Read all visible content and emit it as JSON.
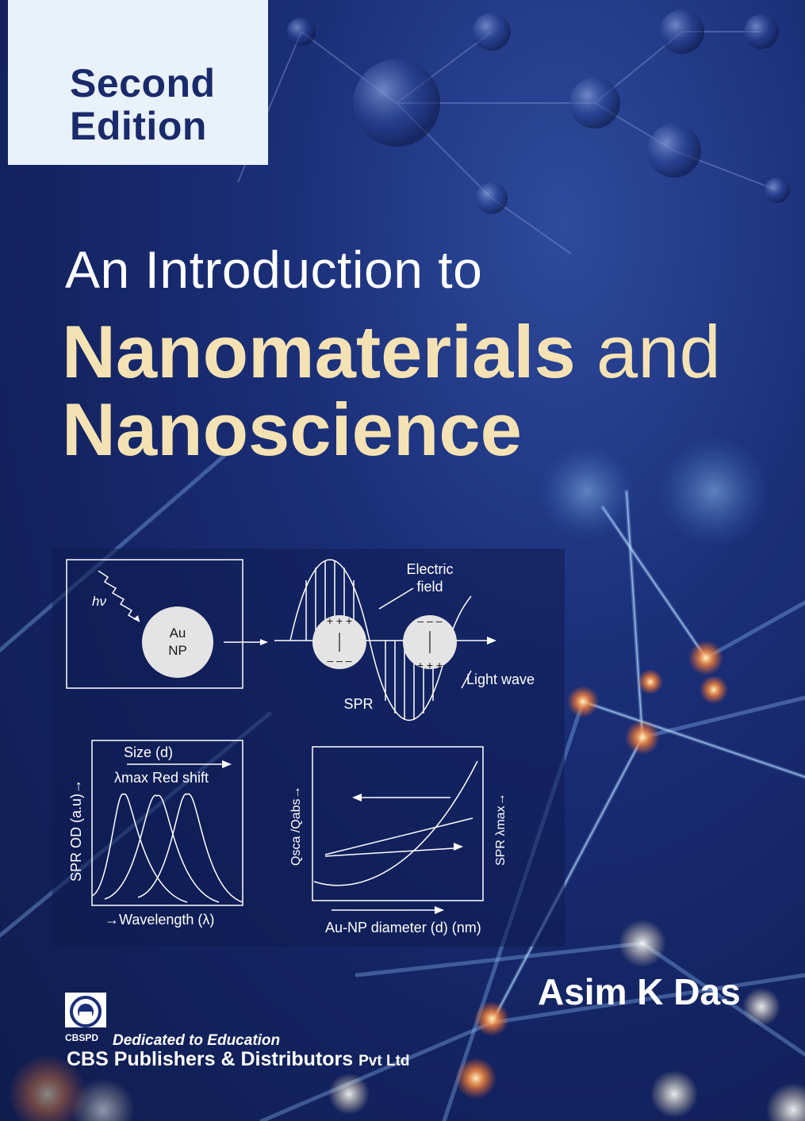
{
  "edition": {
    "line1": "Second",
    "line2": "Edition"
  },
  "title": {
    "line1": "An Introduction to",
    "line2_bold": "Nanomaterials",
    "line2_rest": " and",
    "line3": "Nanoscience"
  },
  "author": "Asim K Das",
  "figure": {
    "hv": "hν",
    "au_line1": "Au",
    "au_line2": "NP",
    "electric_field_line1": "Electric",
    "electric_field_line2": "field",
    "light_wave": "Light wave",
    "spr": "SPR",
    "plus_top": "+ + +",
    "minus_top": "– – –",
    "chart1": {
      "size_label": "Size (d)",
      "lambda_label": "λmax Red shift",
      "ylabel": "SPR OD (a.u)→",
      "xlabel": "→Wavelength (λ)"
    },
    "chart2": {
      "ylabel_left": "Qsca /Qabs→",
      "ylabel_right": "SPR λmax→",
      "xlabel": "Au-NP diameter (d) (nm)"
    }
  },
  "publisher": {
    "logo_text": "CBSPD",
    "tagline": "Dedicated to Education",
    "name": "CBS Publishers & Distributors",
    "suffix": "Pvt Ltd"
  },
  "colors": {
    "background": "#1b2f78",
    "edition_box": "#e9f1fb",
    "edition_text": "#1b2a6b",
    "title_gold": "#f5e2b4"
  }
}
